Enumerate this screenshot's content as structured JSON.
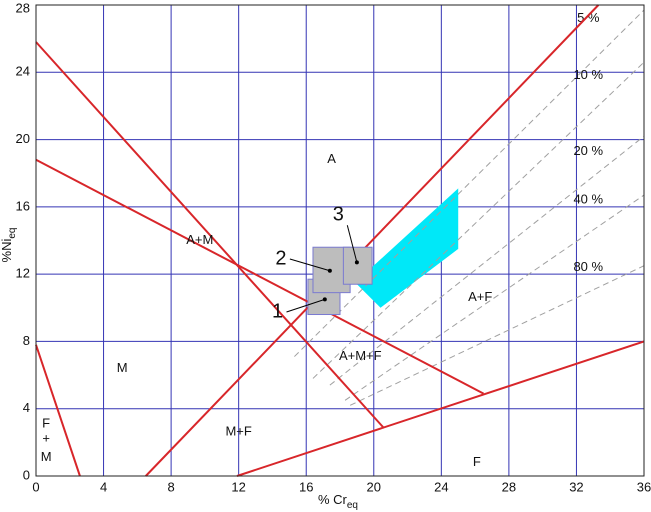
{
  "chart_data": {
    "type": "phase-diagram",
    "x_label": {
      "text": "% Cr",
      "sub": "eq"
    },
    "y_label": {
      "text": "%Ni",
      "sub": "eq"
    },
    "xlim": [
      0,
      36
    ],
    "ylim": [
      0,
      28
    ],
    "xticks": [
      0,
      4,
      8,
      12,
      16,
      20,
      24,
      28,
      32,
      36
    ],
    "yticks": [
      0,
      4,
      8,
      12,
      16,
      20,
      24,
      28
    ],
    "grid": true,
    "grid_color": "#3434b4",
    "boundary_color": "#d8262a",
    "boundaries": [
      {
        "x": [
          0,
          20.6
        ],
        "y": [
          25.8,
          2.85
        ]
      },
      {
        "x": [
          0,
          26.5
        ],
        "y": [
          18.8,
          4.9
        ]
      },
      {
        "x": [
          6.5,
          33.3
        ],
        "y": [
          0,
          28
        ]
      },
      {
        "x": [
          11.9,
          36
        ],
        "y": [
          0,
          8.0
        ]
      },
      {
        "x": [
          0,
          2.6
        ],
        "y": [
          7.8,
          0
        ]
      }
    ],
    "ferrite_color": "#a0a0a0",
    "ferrite_lines": [
      {
        "name": "5 %",
        "x": [
          15.3,
          36
        ],
        "y": [
          7.1,
          27.7
        ],
        "label_at": [
          32.7,
          27.2
        ]
      },
      {
        "name": "10 %",
        "x": [
          16.4,
          36
        ],
        "y": [
          5.8,
          24.6
        ],
        "label_at": [
          32.7,
          23.8
        ]
      },
      {
        "name": "20 %",
        "x": [
          17.4,
          36
        ],
        "y": [
          5.4,
          20.2
        ],
        "label_at": [
          32.7,
          19.3
        ]
      },
      {
        "name": "40 %",
        "x": [
          18.3,
          36
        ],
        "y": [
          4.5,
          16.7
        ],
        "label_at": [
          32.7,
          16.4
        ]
      },
      {
        "name": "80 %",
        "x": [
          18.6,
          36
        ],
        "y": [
          4.2,
          12.5
        ],
        "label_at": [
          32.7,
          12.4
        ]
      }
    ],
    "highlight": {
      "color": "#00e8f8",
      "x": [
        18.9,
        25.0,
        25.0,
        20.4
      ],
      "y": [
        11.5,
        17.1,
        13.5,
        10.0
      ]
    },
    "samples": [
      {
        "label": "1",
        "x": [
          16.1,
          18.0
        ],
        "y": [
          9.6,
          11.7
        ],
        "point": [
          17.1,
          10.5
        ],
        "label_at": [
          14.3,
          9.75
        ]
      },
      {
        "label": "2",
        "x": [
          16.4,
          18.6
        ],
        "y": [
          10.9,
          13.6
        ],
        "point": [
          17.4,
          12.2
        ],
        "label_at": [
          14.5,
          12.9
        ]
      },
      {
        "label": "3",
        "x": [
          18.2,
          19.9
        ],
        "y": [
          11.4,
          13.6
        ],
        "point": [
          19.0,
          12.7
        ],
        "label_at": [
          17.9,
          15.5
        ]
      }
    ],
    "sample_fill": "#bdbdbd",
    "sample_stroke": "#7a7ad0",
    "regions": [
      {
        "label": "A",
        "at": [
          17.5,
          18.8
        ]
      },
      {
        "label": "A+M",
        "at": [
          9.7,
          14.0
        ]
      },
      {
        "label": "A+F",
        "at": [
          26.3,
          10.6
        ]
      },
      {
        "label": "A+M+F",
        "at": [
          19.2,
          7.1
        ]
      },
      {
        "label": "M",
        "at": [
          5.1,
          6.4
        ]
      },
      {
        "label": "M+F",
        "at": [
          12.0,
          2.6
        ]
      },
      {
        "label": "F",
        "at": [
          26.1,
          0.8
        ]
      },
      {
        "label": "F",
        "at": [
          0.6,
          3.1
        ]
      },
      {
        "label": "+",
        "at": [
          0.6,
          2.2
        ]
      },
      {
        "label": "M",
        "at": [
          0.6,
          1.1
        ]
      }
    ]
  }
}
